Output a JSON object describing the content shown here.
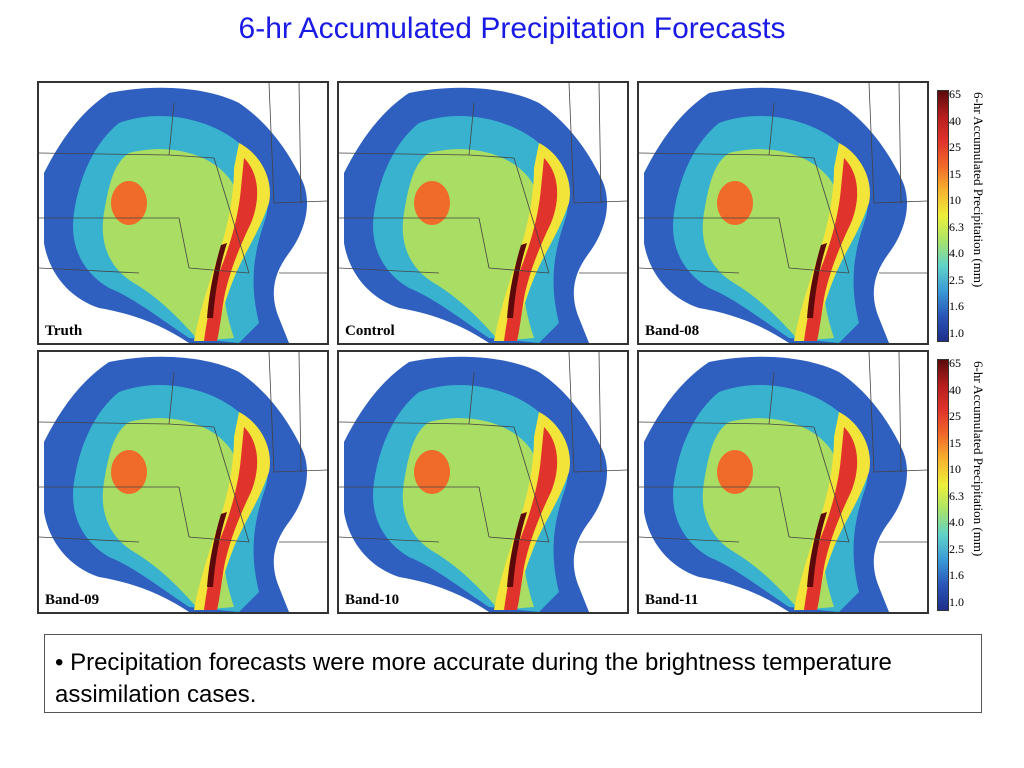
{
  "title": "6-hr Accumulated Precipitation Forecasts",
  "panels": [
    {
      "label": "Truth"
    },
    {
      "label": "Control"
    },
    {
      "label": "Band-08"
    },
    {
      "label": "Band-09"
    },
    {
      "label": "Band-10"
    },
    {
      "label": "Band-11"
    }
  ],
  "colorbar": {
    "title": "6-hr Accumulated Precipitation (mm)",
    "ticks": [
      "65",
      "40",
      "25",
      "15",
      "10",
      "6.3",
      "4.0",
      "2.5",
      "1.6",
      "1.0"
    ],
    "colors": [
      "#5a0a0a",
      "#b51e1e",
      "#e0332b",
      "#f06a2a",
      "#f6b52f",
      "#eef03a",
      "#a8e36a",
      "#5fd2c8",
      "#3a9ad6",
      "#2a55b8",
      "#1e2f8a"
    ]
  },
  "note": {
    "bullet": "•",
    "text": "Precipitation forecasts were more accurate during the brightness temperature assimilation cases."
  }
}
